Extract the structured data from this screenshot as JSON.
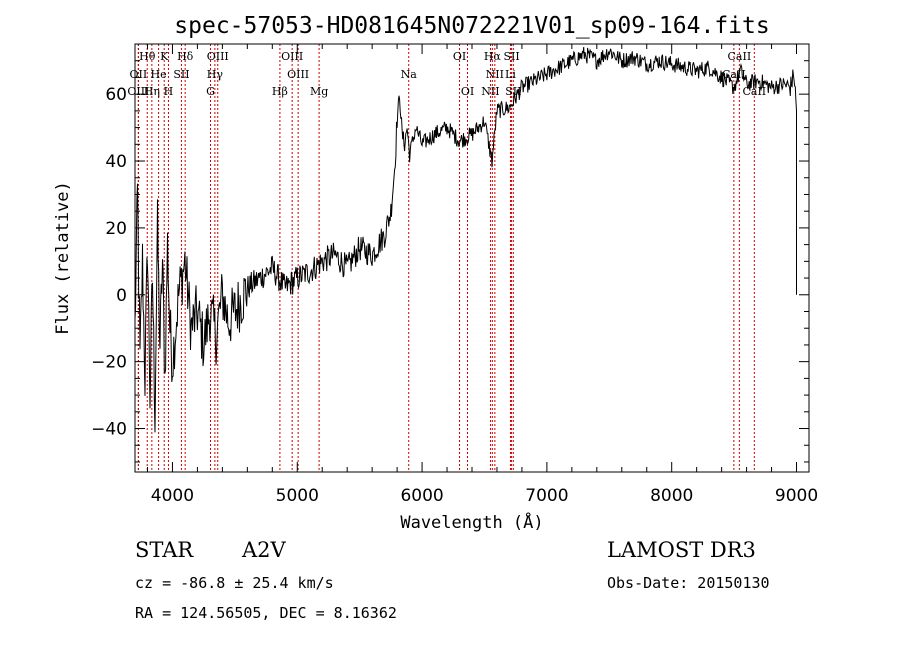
{
  "chart_data": {
    "type": "line",
    "title": "spec-57053-HD081645N072221V01_sp09-164.fits",
    "xlabel": "Wavelength (Å)",
    "ylabel": "Flux (relative)",
    "xlim": [
      3700,
      9100
    ],
    "ylim": [
      -53,
      75
    ],
    "x_ticks": [
      4000,
      5000,
      6000,
      7000,
      8000,
      9000
    ],
    "y_ticks": [
      -40,
      -20,
      0,
      20,
      40,
      60
    ],
    "series": [
      {
        "name": "flux",
        "x": [
          3700,
          3720,
          3740,
          3760,
          3780,
          3800,
          3820,
          3840,
          3860,
          3880,
          3900,
          3920,
          3940,
          3960,
          3980,
          4000,
          4050,
          4100,
          4150,
          4200,
          4250,
          4300,
          4350,
          4400,
          4450,
          4500,
          4600,
          4700,
          4800,
          4900,
          5000,
          5100,
          5200,
          5300,
          5400,
          5500,
          5600,
          5700,
          5750,
          5780,
          5800,
          5820,
          5840,
          5860,
          5880,
          5900,
          5950,
          6000,
          6100,
          6200,
          6300,
          6400,
          6500,
          6560,
          6600,
          6700,
          6800,
          6900,
          7000,
          7100,
          7200,
          7300,
          7400,
          7500,
          7600,
          7700,
          7800,
          7900,
          8000,
          8100,
          8200,
          8300,
          8400,
          8500,
          8550,
          8600,
          8700,
          8800,
          8900,
          8950,
          8980,
          9000,
          9000
        ],
        "y": [
          -10,
          30,
          -20,
          10,
          -25,
          15,
          -30,
          5,
          -35,
          20,
          -15,
          10,
          -25,
          15,
          -10,
          -20,
          0,
          10,
          -10,
          -5,
          -15,
          -5,
          -12,
          0,
          -8,
          -5,
          2,
          5,
          8,
          2,
          5,
          7,
          10,
          12,
          8,
          14,
          12,
          18,
          25,
          38,
          52,
          60,
          48,
          45,
          50,
          42,
          50,
          45,
          48,
          50,
          46,
          48,
          52,
          40,
          55,
          56,
          62,
          64,
          66,
          68,
          70,
          72,
          70,
          73,
          70,
          71,
          69,
          70,
          69,
          68,
          67,
          68,
          65,
          62,
          67,
          63,
          64,
          62,
          63,
          62,
          66,
          55,
          0
        ]
      }
    ],
    "spectral_lines": [
      {
        "label": "Hθ",
        "wavelength": 3798,
        "row": 1
      },
      {
        "label": "K",
        "wavelength": 3934,
        "row": 1
      },
      {
        "label": "Hδ",
        "wavelength": 4102,
        "row": 1
      },
      {
        "label": "OIII",
        "wavelength": 4363,
        "row": 1
      },
      {
        "label": "OIII",
        "wavelength": 4959,
        "row": 1
      },
      {
        "label": "OI",
        "wavelength": 6300,
        "row": 1
      },
      {
        "label": "Hα",
        "wavelength": 6563,
        "row": 1
      },
      {
        "label": "SII",
        "wavelength": 6717,
        "row": 1
      },
      {
        "label": "CaII",
        "wavelength": 8542,
        "row": 1
      },
      {
        "label": "OII",
        "wavelength": 3727,
        "row": 2
      },
      {
        "label": "He",
        "wavelength": 3889,
        "row": 2
      },
      {
        "label": "SII",
        "wavelength": 4072,
        "row": 2
      },
      {
        "label": "Hγ",
        "wavelength": 4340,
        "row": 2
      },
      {
        "label": "OIII",
        "wavelength": 5007,
        "row": 2
      },
      {
        "label": "Na",
        "wavelength": 5893,
        "row": 2
      },
      {
        "label": "NII",
        "wavelength": 6583,
        "row": 2
      },
      {
        "label": "Li",
        "wavelength": 6708,
        "row": 2
      },
      {
        "label": "CaII",
        "wavelength": 8498,
        "row": 2
      },
      {
        "label": "OIII",
        "wavelength": 3727,
        "row": 3
      },
      {
        "label": "Hη",
        "wavelength": 3835,
        "row": 3
      },
      {
        "label": "H",
        "wavelength": 3968,
        "row": 3
      },
      {
        "label": "G",
        "wavelength": 4305,
        "row": 3
      },
      {
        "label": "Hβ",
        "wavelength": 4861,
        "row": 3
      },
      {
        "label": "Mg",
        "wavelength": 5175,
        "row": 3
      },
      {
        "label": "OI",
        "wavelength": 6364,
        "row": 3
      },
      {
        "label": "NII",
        "wavelength": 6548,
        "row": 3
      },
      {
        "label": "SII",
        "wavelength": 6731,
        "row": 3
      },
      {
        "label": "CaII",
        "wavelength": 8662,
        "row": 3
      }
    ]
  },
  "info": {
    "object_class": "STAR",
    "subclass": "A2V",
    "survey": "LAMOST DR3",
    "redshift": "cz = -86.8 ± 25.4 km/s",
    "obs_date": "Obs-Date: 20150130",
    "coords": "RA = 124.56505, DEC =   8.16362"
  }
}
